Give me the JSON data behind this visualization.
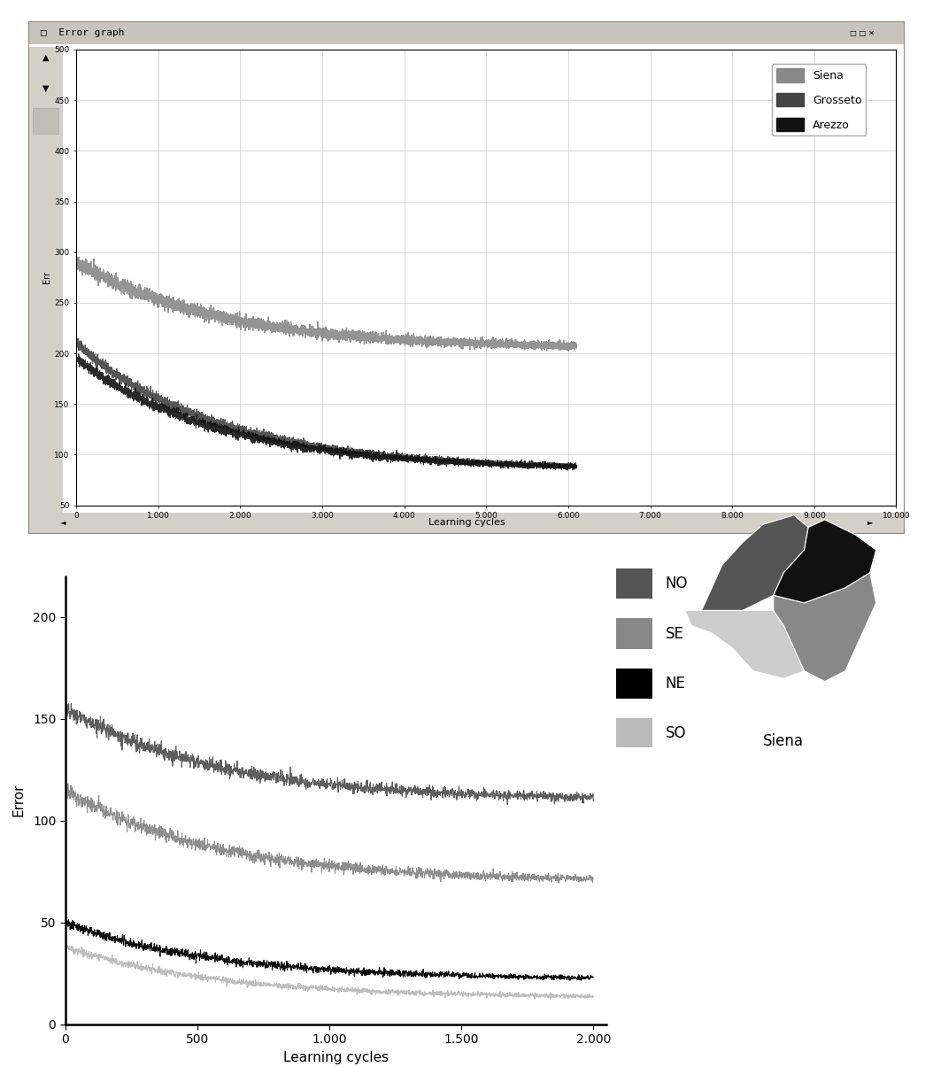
{
  "top_chart": {
    "title": "Error graph",
    "xlabel": "Learning cycles",
    "ylabel": "Err",
    "xlim": [
      0,
      10000
    ],
    "ylim": [
      50,
      500
    ],
    "yticks": [
      50,
      100,
      150,
      200,
      250,
      300,
      350,
      400,
      450,
      500
    ],
    "xticks": [
      0,
      1000,
      2000,
      3000,
      4000,
      5000,
      6000,
      7000,
      8000,
      9000,
      10000
    ],
    "xtick_labels": [
      "0",
      "1.000",
      "2.000",
      "3.000",
      "4.000",
      "5.000",
      "6.000",
      "7.000",
      "8.000",
      "9.000",
      "10.000"
    ],
    "siena_color": "#888888",
    "grosseto_color": "#444444",
    "arezzo_color": "#111111",
    "siena_start": 290,
    "siena_end": 205,
    "siena_xend": 6100,
    "grosseto_start": 210,
    "grosseto_end": 85,
    "grosseto_xend": 6100,
    "arezzo_start": 195,
    "arezzo_end": 85,
    "arezzo_xend": 6100
  },
  "bottom_chart": {
    "xlabel": "Learning cycles",
    "ylabel": "Error",
    "xlim": [
      0,
      2050
    ],
    "ylim": [
      0,
      220
    ],
    "yticks": [
      0,
      50,
      100,
      150,
      200
    ],
    "xticks": [
      0,
      500,
      1000,
      1500,
      2000
    ],
    "xtick_labels": [
      "0",
      "500",
      "1.000",
      "1.500",
      "2.000"
    ],
    "NO_color": "#555555",
    "SE_color": "#888888",
    "NE_color": "#000000",
    "SO_color": "#bbbbbb",
    "NO_start": 155,
    "NO_end": 110,
    "SE_start": 115,
    "SE_end": 70,
    "NE_start": 50,
    "NE_end": 22,
    "SO_start": 38,
    "SO_end": 13
  },
  "bg_color": "#ffffff",
  "window_bg": "#d4d0c8",
  "plot_bg": "#ffffff",
  "grid_color": "#cccccc"
}
